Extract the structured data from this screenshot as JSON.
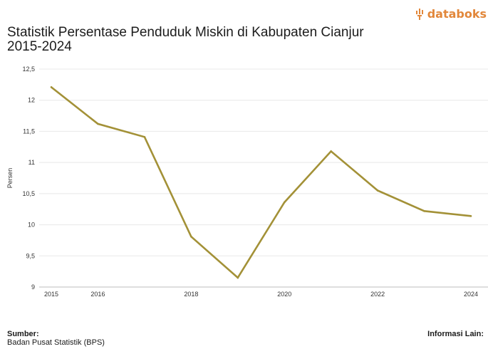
{
  "brand": {
    "name": "databoks",
    "color": "#e2873a",
    "icon": "databoks-logo-icon"
  },
  "title_line1": "Statistik Persentase Penduduk Miskin di Kabupaten Cianjur",
  "title_line2": "2015-2024",
  "footer": {
    "source_label": "Sumber:",
    "source_value": "Badan Pusat Statistik (BPS)",
    "info_label": "Informasi Lain:"
  },
  "chart_data": {
    "type": "line",
    "title": "Statistik Persentase Penduduk Miskin di Kabupaten Cianjur 2015-2024",
    "ylabel": "Persen",
    "xlabel": "",
    "ylim": [
      9,
      12.5
    ],
    "yticks": [
      "9",
      "9,5",
      "10",
      "10,5",
      "11",
      "11,5",
      "12",
      "12,5"
    ],
    "xticks": [
      "2015",
      "2016",
      "2018",
      "2020",
      "2022",
      "2024"
    ],
    "grid": true,
    "series": [
      {
        "color": "#a39137",
        "x": [
          2015,
          2016,
          2017,
          2018,
          2019,
          2020,
          2021,
          2022,
          2023,
          2024
        ],
        "values": [
          12.21,
          11.62,
          11.41,
          9.81,
          9.15,
          10.36,
          11.18,
          10.55,
          10.22,
          10.14
        ]
      }
    ]
  }
}
